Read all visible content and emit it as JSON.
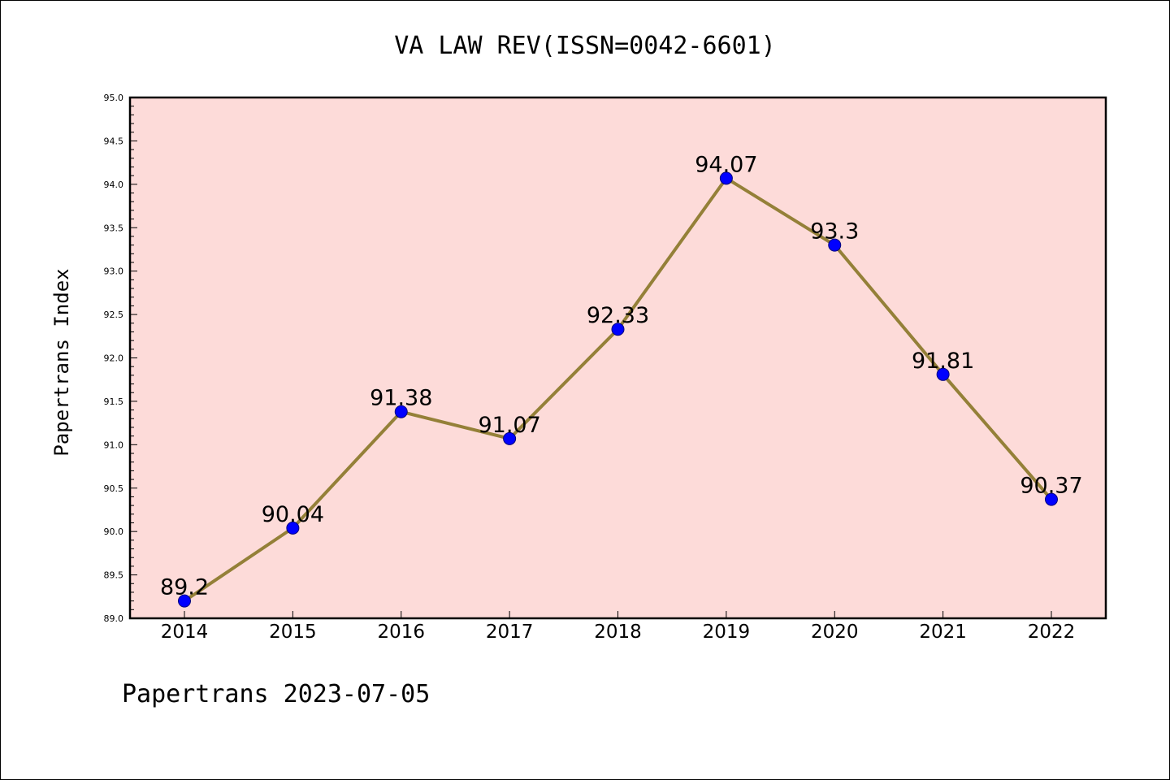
{
  "chart_data": {
    "type": "line",
    "title": "VA LAW REV(ISSN=0042-6601)",
    "ylabel": "Papertrans Index",
    "xlabel": "",
    "categories": [
      "2014",
      "2015",
      "2016",
      "2017",
      "2018",
      "2019",
      "2020",
      "2021",
      "2022"
    ],
    "values": [
      89.2,
      90.04,
      91.38,
      91.07,
      92.33,
      94.07,
      93.3,
      91.81,
      90.37
    ],
    "data_labels": [
      "89.2",
      "90.04",
      "91.38",
      "91.07",
      "92.33",
      "94.07",
      "93.3",
      "91.81",
      "90.37"
    ],
    "ylim": [
      89.0,
      95.0
    ],
    "yticks": [
      "89.0",
      "89.5",
      "90.0",
      "90.5",
      "91.0",
      "91.5",
      "92.0",
      "92.5",
      "93.0",
      "93.5",
      "94.0",
      "94.5",
      "95.0"
    ],
    "grid": false,
    "legend": "none",
    "colors": {
      "plot_background": "#fddbd9",
      "line": "#948038",
      "marker": "#0000ff"
    }
  },
  "footer": "Papertrans 2023-07-05"
}
